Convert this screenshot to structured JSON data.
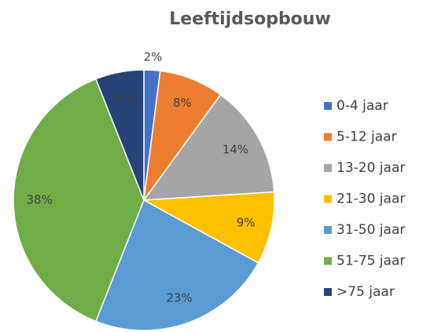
{
  "chart_data": {
    "type": "pie",
    "title": "Leeftijdsopbouw",
    "categories": [
      "0-4 jaar",
      "5-12 jaar",
      "13-20 jaar",
      "21-30 jaar",
      "31-50 jaar",
      "51-75 jaar",
      ">75 jaar"
    ],
    "values": [
      2,
      8,
      14,
      9,
      23,
      38,
      6
    ],
    "value_labels": [
      "2%",
      "8%",
      "14%",
      "9%",
      "23%",
      "38%",
      "6%"
    ],
    "colors": [
      "#4472c4",
      "#ed7d31",
      "#a5a5a5",
      "#ffc000",
      "#5b9bd5",
      "#70ad47",
      "#264478"
    ],
    "legend": "right"
  }
}
